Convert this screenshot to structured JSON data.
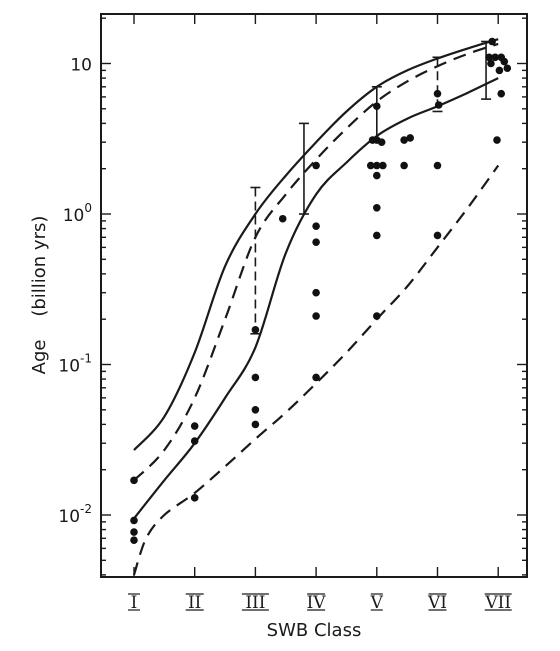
{
  "chart_data": {
    "type": "scatter",
    "title": "",
    "xlabel": "SWB Class",
    "ylabel": "Age    (billion yrs)",
    "categories": [
      "I",
      "II",
      "III",
      "IV",
      "V",
      "VI",
      "VII"
    ],
    "y_scale": "log",
    "ylim": [
      0.004,
      20
    ],
    "y_ticks": [
      {
        "value": 0.01,
        "base": "10",
        "exp": "-2"
      },
      {
        "value": 0.1,
        "base": "10",
        "exp": "-1"
      },
      {
        "value": 1,
        "base": "10",
        "exp": "0"
      },
      {
        "value": 10,
        "base": "10",
        "exp": ""
      }
    ],
    "grid": false,
    "legend": "none",
    "points": [
      {
        "x": 1,
        "y": 0.017
      },
      {
        "x": 1,
        "y": 0.0092
      },
      {
        "x": 1,
        "y": 0.0077
      },
      {
        "x": 1,
        "y": 0.0068
      },
      {
        "x": 2,
        "y": 0.039
      },
      {
        "x": 2,
        "y": 0.031
      },
      {
        "x": 2,
        "y": 0.013
      },
      {
        "x": 3,
        "y": 0.17
      },
      {
        "x": 3,
        "y": 0.082
      },
      {
        "x": 3,
        "y": 0.05
      },
      {
        "x": 3,
        "y": 0.04
      },
      {
        "x": 3.45,
        "y": 0.93
      },
      {
        "x": 4,
        "y": 2.1
      },
      {
        "x": 4,
        "y": 0.83
      },
      {
        "x": 4,
        "y": 0.65
      },
      {
        "x": 4,
        "y": 0.3
      },
      {
        "x": 4,
        "y": 0.21
      },
      {
        "x": 4,
        "y": 0.082
      },
      {
        "x": 5,
        "y": 5.2
      },
      {
        "x": 4.93,
        "y": 3.1
      },
      {
        "x": 5,
        "y": 3.1
      },
      {
        "x": 5.08,
        "y": 3.0
      },
      {
        "x": 4.9,
        "y": 2.1
      },
      {
        "x": 5,
        "y": 2.1
      },
      {
        "x": 5.1,
        "y": 2.1
      },
      {
        "x": 5,
        "y": 1.8
      },
      {
        "x": 5,
        "y": 1.1
      },
      {
        "x": 5,
        "y": 0.72
      },
      {
        "x": 5,
        "y": 0.21
      },
      {
        "x": 5.45,
        "y": 3.1
      },
      {
        "x": 5.55,
        "y": 3.2
      },
      {
        "x": 5.45,
        "y": 2.1
      },
      {
        "x": 6,
        "y": 6.3
      },
      {
        "x": 6.02,
        "y": 5.3
      },
      {
        "x": 6,
        "y": 2.1
      },
      {
        "x": 6,
        "y": 0.72
      },
      {
        "x": 6.9,
        "y": 14
      },
      {
        "x": 6.85,
        "y": 11
      },
      {
        "x": 6.95,
        "y": 11
      },
      {
        "x": 7.05,
        "y": 11
      },
      {
        "x": 7.1,
        "y": 10.3
      },
      {
        "x": 6.88,
        "y": 10
      },
      {
        "x": 7.02,
        "y": 9
      },
      {
        "x": 7.15,
        "y": 9.3
      },
      {
        "x": 7.05,
        "y": 6.3
      },
      {
        "x": 6.98,
        "y": 3.1
      }
    ],
    "curves": [
      {
        "style": "solid",
        "x": [
          1,
          1.5,
          2,
          2.5,
          3,
          3.5,
          4,
          4.5,
          5,
          5.5,
          6,
          6.5,
          7
        ],
        "y": [
          0.027,
          0.045,
          0.12,
          0.45,
          1.0,
          1.8,
          3.0,
          4.8,
          7.0,
          9.0,
          10.8,
          12.6,
          14.5
        ]
      },
      {
        "style": "dashed",
        "x": [
          1,
          1.5,
          2,
          2.5,
          3,
          3.5,
          4,
          4.5,
          5,
          5.5,
          6,
          6.5,
          7
        ],
        "y": [
          0.017,
          0.027,
          0.06,
          0.2,
          0.7,
          1.35,
          2.3,
          3.7,
          5.6,
          7.6,
          9.6,
          11.6,
          13.5
        ]
      },
      {
        "style": "solid",
        "x": [
          1,
          1.5,
          2,
          2.5,
          3,
          3.5,
          4,
          4.5,
          5,
          5.5,
          6,
          6.5,
          7
        ],
        "y": [
          0.0095,
          0.017,
          0.03,
          0.06,
          0.13,
          0.55,
          1.35,
          2.2,
          3.3,
          4.3,
          5.2,
          6.4,
          8.0
        ]
      },
      {
        "style": "dashed",
        "x": [
          1,
          1.2,
          1.5,
          2,
          2.5,
          3,
          3.5,
          4,
          4.5,
          5,
          5.5,
          6,
          6.5,
          7
        ],
        "y": [
          0.004,
          0.007,
          0.01,
          0.014,
          0.021,
          0.032,
          0.048,
          0.075,
          0.12,
          0.2,
          0.33,
          0.6,
          1.1,
          2.1
        ]
      }
    ],
    "ranges": [
      {
        "x": 3,
        "low": 0.16,
        "high": 1.5,
        "style": "dashed"
      },
      {
        "x": 3.8,
        "low": 1.0,
        "high": 4.0,
        "style": "solid"
      },
      {
        "x": 5,
        "low": 3.1,
        "high": 7.0,
        "style": "solid"
      },
      {
        "x": 6,
        "low": 4.8,
        "high": 11.0,
        "style": "dashed"
      },
      {
        "x": 6.8,
        "low": 5.8,
        "high": 14.0,
        "style": "solid"
      }
    ]
  }
}
